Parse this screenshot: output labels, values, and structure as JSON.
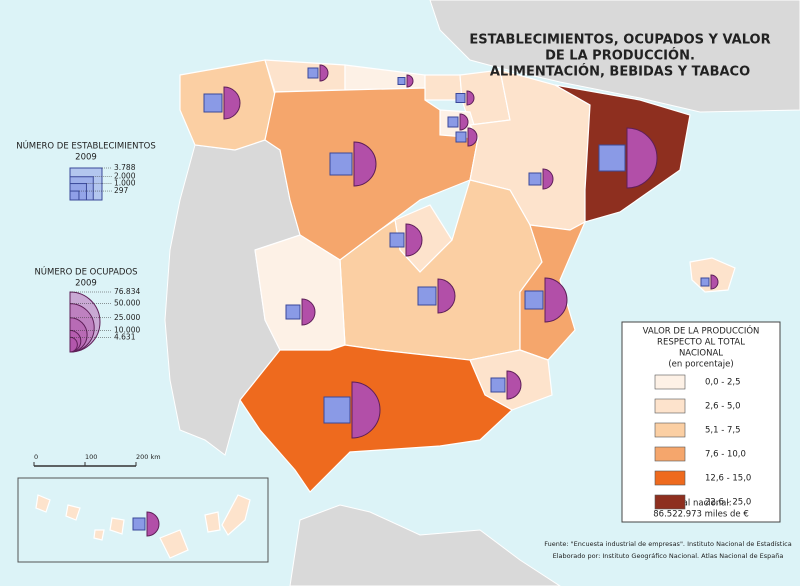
{
  "title": [
    "ESTABLECIMIENTOS, OCUPADOS Y VALOR",
    "DE LA PRODUCCIÓN.",
    "ALIMENTACIÓN, BEBIDAS Y TABACO"
  ],
  "establishments_legend": {
    "title": "NÚMERO DE ESTABLECIMIENTOS",
    "year": "2009",
    "values": [
      {
        "value": 3788,
        "label": "3.788"
      },
      {
        "value": 2000,
        "label": "2.000"
      },
      {
        "value": 1000,
        "label": "1.000"
      },
      297
    ]
  },
  "employed_legend": {
    "title": "NÚMERO DE OCUPADOS",
    "year": "2009",
    "values": [
      {
        "value": 76834,
        "label": "76.834"
      },
      {
        "value": 50000,
        "label": "50.000"
      },
      {
        "value": 25000,
        "label": "25.000"
      },
      {
        "value": 10000,
        "label": "10.000"
      },
      {
        "value": 4631,
        "label": "4.631"
      }
    ]
  },
  "value_legend": {
    "title": [
      "VALOR DE LA PRODUCCIÓN",
      "RESPECTO AL TOTAL",
      "NACIONAL",
      "(en porcentaje)"
    ],
    "classes": [
      {
        "label": "0,0 - 2,5",
        "color": "#fdf1e6"
      },
      {
        "label": "2,6 - 5,0",
        "color": "#fde3cc"
      },
      {
        "label": "5,1 - 7,5",
        "color": "#fbcfa3"
      },
      {
        "label": "7,6 - 10,0",
        "color": "#f5a66c"
      },
      {
        "label": "12,6 - 15,0",
        "color": "#ee6a1e"
      },
      {
        "label": "22,6 - 25,0",
        "color": "#8e2f1f"
      }
    ],
    "total_label": "Total nacional:",
    "total": "86.522.973 miles de €"
  },
  "scale": {
    "ticks": [
      0,
      100,
      {
        "value": 200,
        "label": "200 km"
      }
    ]
  },
  "footer": [
    "Fuente: \"Encuesta industrial de empresas\". Instituto Nacional de Estadística",
    "Elaborado por: Instituto Geográfico Nacional. Atlas Nacional de España"
  ]
}
